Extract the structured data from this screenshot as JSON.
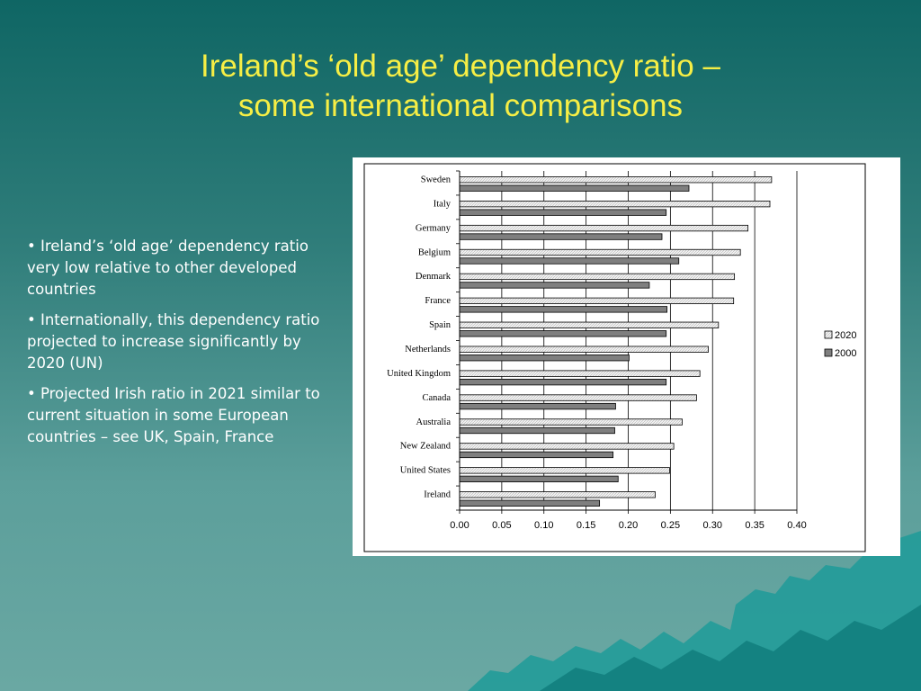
{
  "slide": {
    "title_line1": "Ireland’s ‘old age’ dependency ratio –",
    "title_line2": "some international comparisons",
    "bullets": [
      "• Ireland’s ‘old age’ dependency ratio very low relative to other developed countries",
      "• Internationally, this dependency ratio projected to increase significantly by 2020 (UN)",
      "• Projected Irish ratio in 2021 similar to current situation in some European countries – see UK, Spain, France"
    ],
    "colors": {
      "title": "#f6ee45",
      "text": "#ffffff",
      "bg_top": "#0f6664",
      "bg_bottom": "#6aa8a3"
    }
  },
  "chart_data": {
    "type": "bar",
    "orientation": "horizontal",
    "title": "",
    "xlabel": "",
    "ylabel": "",
    "categories": [
      "Sweden",
      "Italy",
      "Germany",
      "Belgium",
      "Denmark",
      "France",
      "Spain",
      "Netherlands",
      "United Kingdom",
      "Canada",
      "Australia",
      "New Zealand",
      "United States",
      "Ireland"
    ],
    "series": [
      {
        "name": "2020",
        "values": [
          0.37,
          0.368,
          0.342,
          0.333,
          0.326,
          0.325,
          0.307,
          0.295,
          0.285,
          0.281,
          0.264,
          0.254,
          0.249,
          0.232
        ],
        "color": "#ececec"
      },
      {
        "name": "2000",
        "values": [
          0.272,
          0.245,
          0.24,
          0.26,
          0.225,
          0.246,
          0.245,
          0.201,
          0.245,
          0.185,
          0.184,
          0.182,
          0.188,
          0.166
        ],
        "color": "#7f7f7f"
      }
    ],
    "xlim": [
      0,
      0.4
    ],
    "xticks": [
      "0.00",
      "0.05",
      "0.10",
      "0.15",
      "0.20",
      "0.25",
      "0.30",
      "0.35",
      "0.40"
    ],
    "grid": true,
    "legend": "right"
  }
}
